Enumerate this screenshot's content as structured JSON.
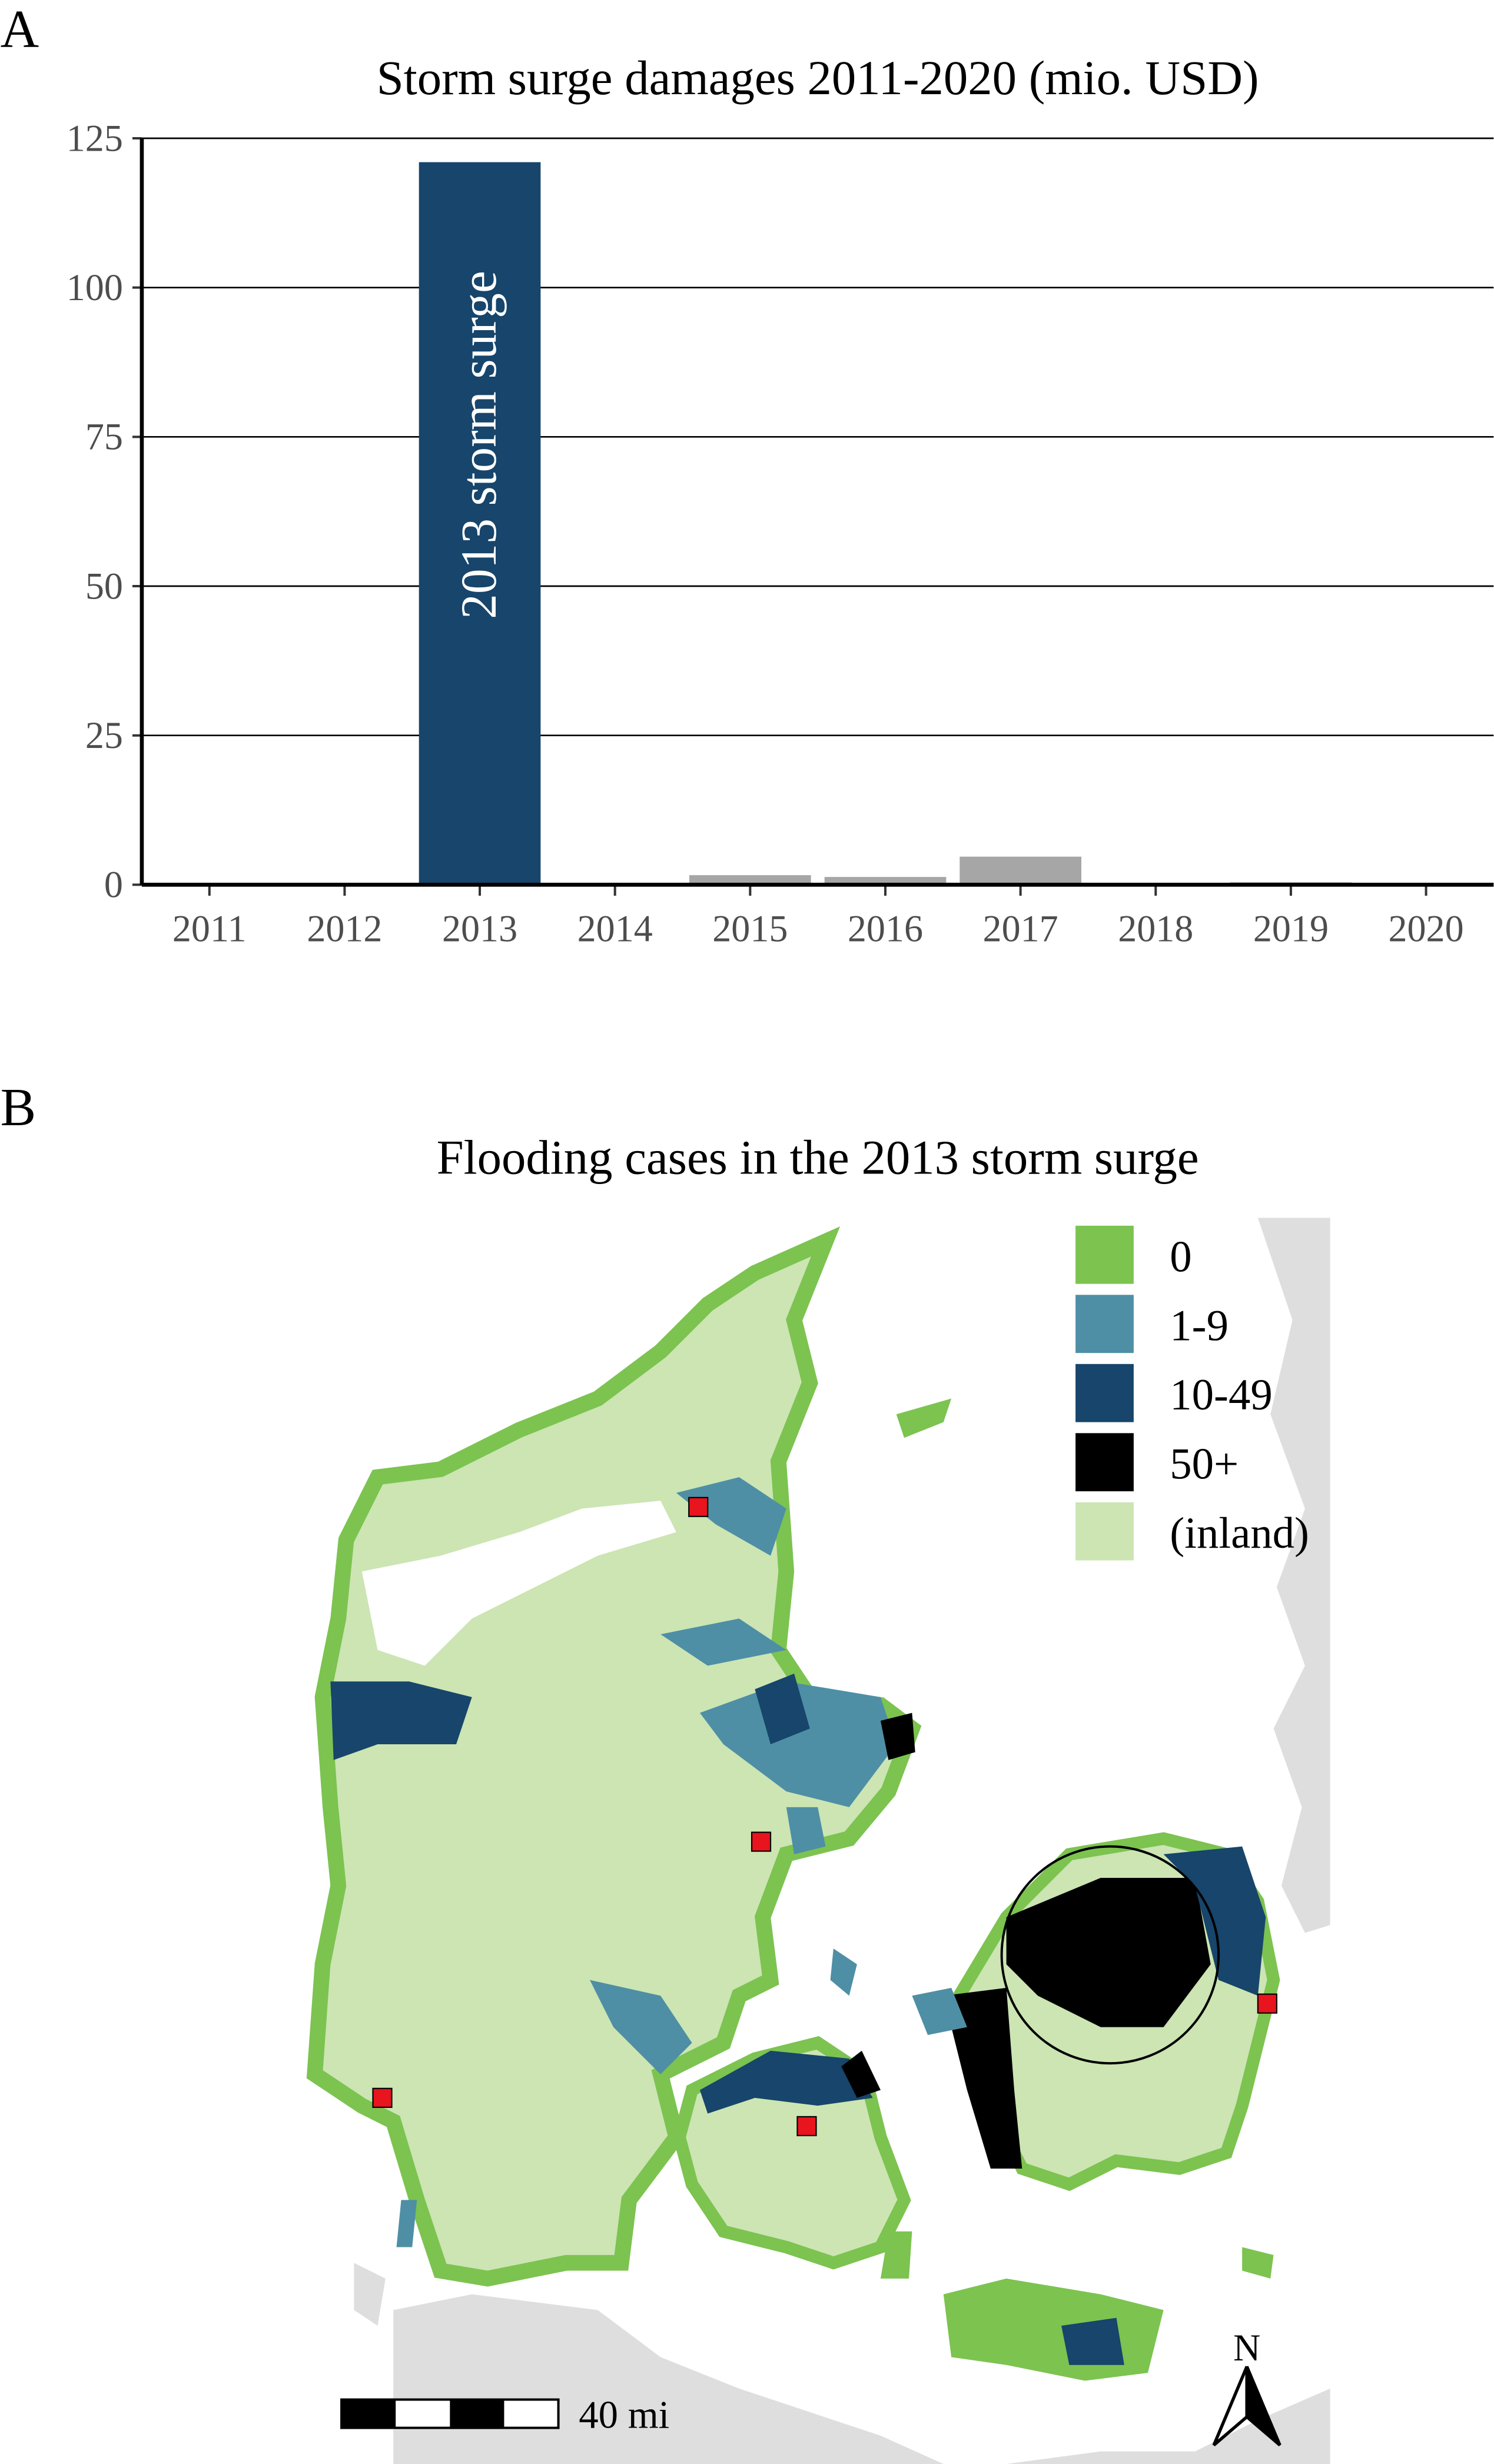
{
  "panel_a": {
    "label": "A",
    "chart_data": {
      "type": "bar",
      "title": "Storm surge damages 2011-2020 (mio. USD)",
      "xlabel": "",
      "ylabel": "",
      "categories": [
        "2011",
        "2012",
        "2013",
        "2014",
        "2015",
        "2016",
        "2017",
        "2018",
        "2019",
        "2020"
      ],
      "values": [
        0,
        0,
        121,
        0,
        1.6,
        1.3,
        4.7,
        0,
        0.4,
        0
      ],
      "ylim": [
        0,
        125
      ],
      "yticks": [
        "0",
        "25",
        "50",
        "75",
        "100",
        "125"
      ],
      "grid": "horizontal",
      "highlight": {
        "category": "2013",
        "label": "2013 storm surge",
        "color": "#17456b"
      },
      "bar_color": "#a6a6a6"
    }
  },
  "panel_b": {
    "label": "B",
    "title": "Flooding cases in the 2013 storm surge",
    "legend": [
      {
        "label": "0",
        "color": "#7cc350"
      },
      {
        "label": "1-9",
        "color": "#4e8fa5"
      },
      {
        "label": "10-49",
        "color": "#17456b"
      },
      {
        "label": "50+",
        "color": "#000000"
      },
      {
        "label": "(inland)",
        "color": "#cce5b3"
      }
    ],
    "scale_bar_label": "40 mi",
    "north_label": "N",
    "marker_color": "#e8141e",
    "neighbor_color": "#dedede"
  }
}
